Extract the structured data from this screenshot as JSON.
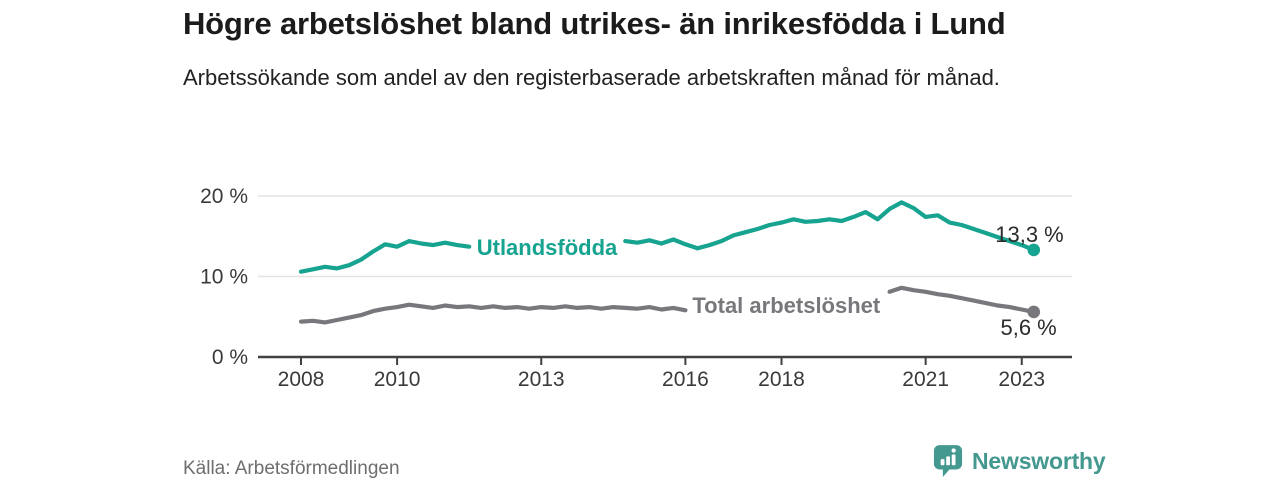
{
  "header": {
    "title": "Högre arbetslöshet bland utrikes- än inrikesfödda i Lund",
    "subtitle": "Arbetssökande som andel av den registerbaserade arbetskraften månad för månad."
  },
  "footer": {
    "source": "Källa: Arbetsförmedlingen",
    "brand": "Newsworthy"
  },
  "colors": {
    "utlandsfodda_teal": "#16a38f",
    "total_gray": "#79777b",
    "brand_teal": "#43988f",
    "grid_gray": "#e3e3e3",
    "axis_dark": "#414141"
  },
  "chart_data": {
    "type": "line",
    "title": "Högre arbetslöshet bland utrikes- än inrikesfödda i Lund",
    "subtitle": "Arbetssökande som andel av den registerbaserade arbetskraften månad för månad.",
    "x_axis": {
      "ticks": [
        2008,
        2010,
        2013,
        2016,
        2018,
        2021,
        2023
      ],
      "range": [
        2007.1,
        2024.0
      ]
    },
    "y_axis": {
      "ticks": [
        0,
        10,
        20
      ],
      "tick_labels": [
        "0 %",
        "10 %",
        "20 %"
      ],
      "range": [
        0,
        22
      ],
      "unit": "%",
      "grid": true
    },
    "series": [
      {
        "name": "Utlandsfödda",
        "color": "#16a38f",
        "end_label": "13,3 %",
        "end_value": 13.3,
        "inline_label": {
          "text": "Utlandsfödda",
          "x": 2013.12,
          "y": 13.66,
          "hide_line_between": [
            2011.62,
            2014.68
          ]
        },
        "points": [
          [
            2008.0,
            10.6
          ],
          [
            2008.25,
            10.9
          ],
          [
            2008.5,
            11.2
          ],
          [
            2008.75,
            11.0
          ],
          [
            2009.0,
            11.4
          ],
          [
            2009.25,
            12.1
          ],
          [
            2009.5,
            13.1
          ],
          [
            2009.75,
            14.0
          ],
          [
            2010.0,
            13.7
          ],
          [
            2010.25,
            14.4
          ],
          [
            2010.5,
            14.1
          ],
          [
            2010.75,
            13.9
          ],
          [
            2011.0,
            14.2
          ],
          [
            2011.25,
            13.9
          ],
          [
            2011.5,
            13.7
          ],
          [
            2011.75,
            13.8
          ],
          [
            2012.0,
            13.6
          ],
          [
            2012.25,
            13.7
          ],
          [
            2012.5,
            13.5
          ],
          [
            2012.75,
            13.6
          ],
          [
            2013.0,
            13.8
          ],
          [
            2013.25,
            13.7
          ],
          [
            2013.5,
            13.9
          ],
          [
            2013.75,
            14.0
          ],
          [
            2014.0,
            13.9
          ],
          [
            2014.25,
            14.1
          ],
          [
            2014.5,
            14.2
          ],
          [
            2014.75,
            14.4
          ],
          [
            2015.0,
            14.2
          ],
          [
            2015.25,
            14.5
          ],
          [
            2015.5,
            14.1
          ],
          [
            2015.75,
            14.6
          ],
          [
            2016.0,
            14.0
          ],
          [
            2016.25,
            13.5
          ],
          [
            2016.5,
            13.9
          ],
          [
            2016.75,
            14.4
          ],
          [
            2017.0,
            15.1
          ],
          [
            2017.25,
            15.5
          ],
          [
            2017.5,
            15.9
          ],
          [
            2017.75,
            16.4
          ],
          [
            2018.0,
            16.7
          ],
          [
            2018.25,
            17.1
          ],
          [
            2018.5,
            16.8
          ],
          [
            2018.75,
            16.9
          ],
          [
            2019.0,
            17.1
          ],
          [
            2019.25,
            16.9
          ],
          [
            2019.5,
            17.4
          ],
          [
            2019.75,
            18.0
          ],
          [
            2020.0,
            17.1
          ],
          [
            2020.25,
            18.4
          ],
          [
            2020.5,
            19.2
          ],
          [
            2020.75,
            18.5
          ],
          [
            2021.0,
            17.4
          ],
          [
            2021.25,
            17.6
          ],
          [
            2021.5,
            16.7
          ],
          [
            2021.75,
            16.4
          ],
          [
            2022.0,
            15.9
          ],
          [
            2022.25,
            15.4
          ],
          [
            2022.5,
            14.9
          ],
          [
            2022.75,
            14.4
          ],
          [
            2023.0,
            13.9
          ],
          [
            2023.25,
            13.3
          ]
        ]
      },
      {
        "name": "Total arbetslöshet",
        "color": "#79777b",
        "end_label": "5,6 %",
        "end_value": 5.6,
        "inline_label": {
          "text": "Total arbetslöshet",
          "x": 2018.1,
          "y": 6.45,
          "hide_line_between": [
            2016.1,
            2020.12
          ]
        },
        "points": [
          [
            2008.0,
            4.4
          ],
          [
            2008.25,
            4.5
          ],
          [
            2008.5,
            4.3
          ],
          [
            2008.75,
            4.6
          ],
          [
            2009.0,
            4.9
          ],
          [
            2009.25,
            5.2
          ],
          [
            2009.5,
            5.7
          ],
          [
            2009.75,
            6.0
          ],
          [
            2010.0,
            6.2
          ],
          [
            2010.25,
            6.5
          ],
          [
            2010.5,
            6.3
          ],
          [
            2010.75,
            6.1
          ],
          [
            2011.0,
            6.4
          ],
          [
            2011.25,
            6.2
          ],
          [
            2011.5,
            6.3
          ],
          [
            2011.75,
            6.1
          ],
          [
            2012.0,
            6.3
          ],
          [
            2012.25,
            6.1
          ],
          [
            2012.5,
            6.2
          ],
          [
            2012.75,
            6.0
          ],
          [
            2013.0,
            6.2
          ],
          [
            2013.25,
            6.1
          ],
          [
            2013.5,
            6.3
          ],
          [
            2013.75,
            6.1
          ],
          [
            2014.0,
            6.2
          ],
          [
            2014.25,
            6.0
          ],
          [
            2014.5,
            6.2
          ],
          [
            2014.75,
            6.1
          ],
          [
            2015.0,
            6.0
          ],
          [
            2015.25,
            6.2
          ],
          [
            2015.5,
            5.9
          ],
          [
            2015.75,
            6.1
          ],
          [
            2016.0,
            5.8
          ],
          [
            2016.25,
            5.9
          ],
          [
            2016.5,
            6.0
          ],
          [
            2017.0,
            6.0
          ],
          [
            2017.5,
            5.9
          ],
          [
            2018.0,
            6.0
          ],
          [
            2018.5,
            6.1
          ],
          [
            2019.0,
            6.0
          ],
          [
            2019.5,
            6.2
          ],
          [
            2019.75,
            6.4
          ],
          [
            2020.0,
            7.0
          ],
          [
            2020.25,
            8.1
          ],
          [
            2020.5,
            8.6
          ],
          [
            2020.75,
            8.3
          ],
          [
            2021.0,
            8.1
          ],
          [
            2021.25,
            7.8
          ],
          [
            2021.5,
            7.6
          ],
          [
            2021.75,
            7.3
          ],
          [
            2022.0,
            7.0
          ],
          [
            2022.25,
            6.7
          ],
          [
            2022.5,
            6.4
          ],
          [
            2022.75,
            6.2
          ],
          [
            2023.0,
            5.9
          ],
          [
            2023.25,
            5.6
          ]
        ]
      }
    ]
  }
}
